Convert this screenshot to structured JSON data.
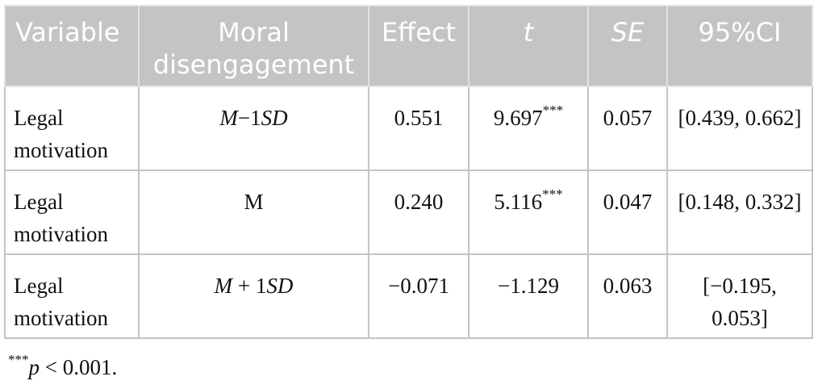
{
  "table": {
    "headers": {
      "variable": "Variable",
      "moral": "Moral disengagement",
      "effect": "Effect",
      "t": "t",
      "se": "SE",
      "ci": "95%CI"
    },
    "rows": [
      {
        "variable": "Legal motivation",
        "moral_italic_m": "M",
        "moral_mid": "−1",
        "moral_italic_sd": "SD",
        "moral_plain": "",
        "effect": "0.551",
        "t_value": "9.697",
        "t_sig": "***",
        "se": "0.057",
        "ci": "[0.439, 0.662]"
      },
      {
        "variable": "Legal motivation",
        "moral_italic_m": "",
        "moral_mid": "",
        "moral_italic_sd": "",
        "moral_plain": "M",
        "effect": "0.240",
        "t_value": "5.116",
        "t_sig": "***",
        "se": "0.047",
        "ci": "[0.148, 0.332]"
      },
      {
        "variable": "Legal motivation",
        "moral_italic_m": "M",
        "moral_mid": " + 1",
        "moral_italic_sd": "SD",
        "moral_plain": "",
        "effect": "−0.071",
        "t_value": "−1.129",
        "t_sig": "",
        "se": "0.063",
        "ci": "[−0.195, 0.053]"
      }
    ]
  },
  "footnote": {
    "stars": "***",
    "p": "p",
    "rest": " < 0.001."
  },
  "colors": {
    "header_bg": "#c4c4c4",
    "header_text": "#ffffff",
    "border": "#c4c4c4"
  }
}
